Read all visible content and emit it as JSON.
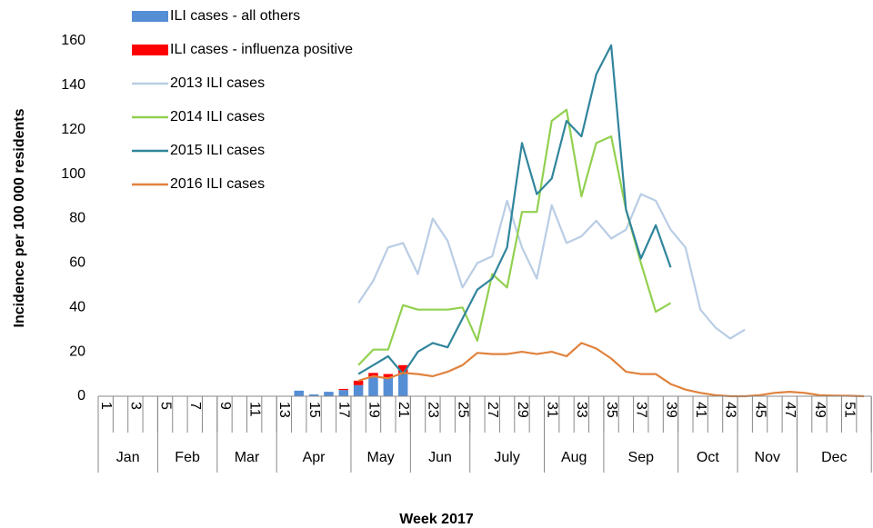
{
  "chart_data": {
    "type": "combo",
    "stacked": true,
    "x_label": "Week 2017",
    "y_label": "Incidence per 100 000 residents",
    "categories": [
      "1",
      null,
      "3",
      null,
      "5",
      null,
      "7",
      null,
      "9",
      null,
      "11",
      null,
      "13",
      null,
      "15",
      null,
      "17",
      null,
      "19",
      null,
      "21",
      null,
      "23",
      null,
      "25",
      null,
      "27",
      null,
      "29",
      null,
      "31",
      null,
      "33",
      null,
      "35",
      null,
      "37",
      null,
      "39",
      null,
      "41",
      null,
      "43",
      null,
      "45",
      null,
      "47",
      null,
      "49",
      null,
      "51",
      null
    ],
    "months": [
      {
        "label": "Jan",
        "span": 4
      },
      {
        "label": "Feb",
        "span": 4
      },
      {
        "label": "Mar",
        "span": 4
      },
      {
        "label": "Apr",
        "span": 5
      },
      {
        "label": "May",
        "span": 4
      },
      {
        "label": "Jun",
        "span": 4
      },
      {
        "label": "July",
        "span": 5
      },
      {
        "label": "Aug",
        "span": 4
      },
      {
        "label": "Sep",
        "span": 5
      },
      {
        "label": "Oct",
        "span": 4
      },
      {
        "label": "Nov",
        "span": 4
      },
      {
        "label": "Dec",
        "span": 5
      }
    ],
    "ylim": [
      0,
      160
    ],
    "yticks": [
      0,
      20,
      40,
      60,
      80,
      100,
      120,
      140,
      160
    ],
    "series": [
      {
        "name": "ILI cases - all others",
        "type": "bar",
        "color": "#558ed5",
        "values": [
          null,
          null,
          null,
          null,
          null,
          null,
          null,
          null,
          null,
          null,
          null,
          null,
          null,
          2.5,
          0.8,
          2,
          2.8,
          5,
          8.5,
          8.5,
          10.5,
          null,
          null,
          null,
          null,
          null,
          null,
          null,
          null,
          null,
          null,
          null,
          null,
          null,
          null,
          null,
          null,
          null,
          null,
          null,
          null,
          null,
          null,
          null,
          null,
          null,
          null,
          null,
          null,
          null,
          null,
          null
        ]
      },
      {
        "name": "ILI cases - influenza positive",
        "type": "bar",
        "color": "#ff0000",
        "values": [
          null,
          null,
          null,
          null,
          null,
          null,
          null,
          null,
          null,
          null,
          null,
          null,
          null,
          0,
          0,
          0,
          0.5,
          2,
          2,
          1.5,
          3.5,
          null,
          null,
          null,
          null,
          null,
          null,
          null,
          null,
          null,
          null,
          null,
          null,
          null,
          null,
          null,
          null,
          null,
          null,
          null,
          null,
          null,
          null,
          null,
          null,
          null,
          null,
          null,
          null,
          null,
          null,
          null
        ]
      },
      {
        "name": "2013 ILI cases",
        "type": "line",
        "color": "#b9cde5",
        "values": [
          null,
          null,
          null,
          null,
          null,
          null,
          null,
          null,
          null,
          null,
          null,
          null,
          null,
          null,
          null,
          null,
          null,
          42,
          52,
          67,
          69,
          55,
          80,
          70,
          49,
          60,
          63,
          88,
          67,
          53,
          86,
          69,
          72,
          79,
          71,
          75,
          91,
          88,
          75,
          67,
          39,
          31,
          26,
          30,
          null,
          null,
          null,
          null,
          null,
          null,
          null,
          null
        ]
      },
      {
        "name": "2014 ILI cases",
        "type": "line",
        "color": "#92d050",
        "values": [
          null,
          null,
          null,
          null,
          null,
          null,
          null,
          null,
          null,
          null,
          null,
          null,
          null,
          null,
          null,
          null,
          null,
          14,
          21,
          21,
          41,
          39,
          39,
          39,
          40,
          25,
          55,
          49,
          83,
          83,
          124,
          129,
          90,
          114,
          117,
          84,
          60,
          38,
          42,
          null,
          null,
          null,
          null,
          null,
          null,
          null,
          null,
          null,
          null,
          null,
          null,
          null
        ]
      },
      {
        "name": "2015 ILI cases",
        "type": "line",
        "color": "#31859c",
        "values": [
          null,
          null,
          null,
          null,
          null,
          null,
          null,
          null,
          null,
          null,
          null,
          null,
          null,
          null,
          null,
          null,
          null,
          10,
          14,
          18,
          10,
          20,
          24,
          22,
          35,
          48,
          53,
          67,
          114,
          91,
          98,
          124,
          117,
          145,
          158,
          84,
          62,
          77,
          58,
          null,
          null,
          null,
          null,
          null,
          null,
          null,
          null,
          null,
          null,
          null,
          null,
          null
        ]
      },
      {
        "name": "2016 ILI cases",
        "type": "line",
        "color": "#e0823d",
        "values": [
          null,
          null,
          null,
          null,
          null,
          null,
          null,
          null,
          null,
          null,
          null,
          null,
          null,
          null,
          null,
          null,
          null,
          7,
          9,
          8,
          10.5,
          10,
          9,
          11,
          14,
          19.5,
          19,
          19,
          20,
          19,
          20,
          18,
          24,
          21.5,
          17,
          11,
          10,
          10,
          5.5,
          3,
          1.5,
          0.5,
          0,
          0,
          0.5,
          1.5,
          2,
          1.5,
          0.5,
          0.3,
          0.2,
          0
        ]
      }
    ]
  }
}
